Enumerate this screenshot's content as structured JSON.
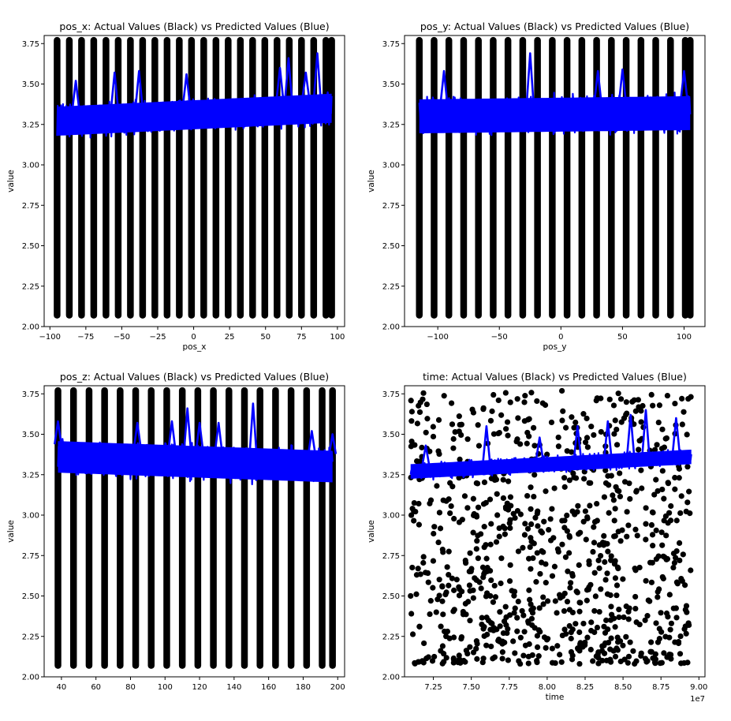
{
  "colors": {
    "actual": "#000000",
    "predicted": "#0000ff",
    "axes": "#000000",
    "background": "#ffffff"
  },
  "chart_data": [
    {
      "type": "scatter",
      "title": "pos_x: Actual Values (Black) vs Predicted Values (Blue)",
      "xlabel": "pos_x",
      "ylabel": "value",
      "xlim": [
        -104,
        105
      ],
      "ylim": [
        2.0,
        3.8
      ],
      "xticks": [
        -100,
        -75,
        -50,
        -25,
        0,
        25,
        50,
        75,
        100
      ],
      "xtick_labels": [
        "−100",
        "−75",
        "−50",
        "−25",
        "0",
        "25",
        "50",
        "75",
        "100"
      ],
      "yticks": [
        2.0,
        2.25,
        2.5,
        2.75,
        3.0,
        3.25,
        3.5,
        3.75
      ],
      "ytick_labels": [
        "2.00",
        "2.25",
        "2.50",
        "2.75",
        "3.00",
        "3.25",
        "3.50",
        "3.75"
      ],
      "exponent_label": "",
      "grid": false,
      "actual": {
        "style": "vertical-stripes",
        "x_values": [
          -95,
          -86.5,
          -78,
          -69.5,
          -61,
          -52.5,
          -44,
          -35.5,
          -27,
          -18.5,
          -10,
          -1.5,
          7,
          15.5,
          24,
          32.5,
          41,
          49.5,
          58,
          66.5,
          75,
          83.5,
          92,
          96
        ],
        "y_range": [
          2.07,
          3.77
        ]
      },
      "predicted": {
        "trend_start": [
          -95,
          3.27
        ],
        "trend_end": [
          96,
          3.35
        ],
        "half_width": 0.12,
        "spikes": [
          [
            -82,
            3.52
          ],
          [
            -55,
            3.57
          ],
          [
            -38,
            3.58
          ],
          [
            -5,
            3.56
          ],
          [
            60,
            3.6
          ],
          [
            66,
            3.66
          ],
          [
            78,
            3.57
          ],
          [
            86,
            3.69
          ]
        ]
      }
    },
    {
      "type": "scatter",
      "title": "pos_y: Actual Values (Black) vs Predicted Values (Blue)",
      "xlabel": "pos_y",
      "ylabel": "value",
      "xlim": [
        -127,
        117
      ],
      "ylim": [
        2.0,
        3.8
      ],
      "xticks": [
        -100,
        -50,
        0,
        50,
        100
      ],
      "xtick_labels": [
        "−100",
        "−50",
        "0",
        "50",
        "100"
      ],
      "yticks": [
        2.0,
        2.25,
        2.5,
        2.75,
        3.0,
        3.25,
        3.5,
        3.75
      ],
      "ytick_labels": [
        "2.00",
        "2.25",
        "2.50",
        "2.75",
        "3.00",
        "3.25",
        "3.50",
        "3.75"
      ],
      "exponent_label": "",
      "grid": false,
      "actual": {
        "style": "vertical-stripes",
        "x_values": [
          -115,
          -103,
          -91,
          -79,
          -67,
          -55,
          -43,
          -31,
          -19,
          -7,
          5,
          17,
          29,
          41,
          53,
          65,
          77,
          89,
          101,
          105
        ],
        "y_range": [
          2.07,
          3.77
        ]
      },
      "predicted": {
        "trend_start": [
          -115,
          3.3
        ],
        "trend_end": [
          105,
          3.32
        ],
        "half_width": 0.14,
        "spikes": [
          [
            -95,
            3.58
          ],
          [
            -25,
            3.69
          ],
          [
            30,
            3.58
          ],
          [
            50,
            3.59
          ],
          [
            100,
            3.58
          ]
        ]
      }
    },
    {
      "type": "scatter",
      "title": "pos_z: Actual Values (Black) vs Predicted Values (Blue)",
      "xlabel": "",
      "ylabel": "value",
      "xlim": [
        30,
        204
      ],
      "ylim": [
        2.0,
        3.8
      ],
      "xticks": [
        40,
        60,
        80,
        100,
        120,
        140,
        160,
        180,
        200
      ],
      "xtick_labels": [
        "40",
        "60",
        "80",
        "100",
        "120",
        "140",
        "160",
        "180",
        "200"
      ],
      "yticks": [
        2.0,
        2.25,
        2.5,
        2.75,
        3.0,
        3.25,
        3.5,
        3.75
      ],
      "ytick_labels": [
        "2.00",
        "2.25",
        "2.50",
        "2.75",
        "3.00",
        "3.25",
        "3.50",
        "3.75"
      ],
      "exponent_label": "",
      "grid": false,
      "actual": {
        "style": "vertical-stripes",
        "x_values": [
          38,
          47,
          56,
          65,
          74,
          83,
          92,
          101,
          110,
          119,
          128,
          137,
          146,
          155,
          164,
          173,
          182,
          191,
          197
        ],
        "y_range": [
          2.07,
          3.77
        ]
      },
      "predicted": {
        "trend_start": [
          38,
          3.36
        ],
        "trend_end": [
          197,
          3.3
        ],
        "half_width": 0.13,
        "spikes": [
          [
            38,
            3.58
          ],
          [
            84,
            3.57
          ],
          [
            104,
            3.58
          ],
          [
            113,
            3.66
          ],
          [
            120,
            3.57
          ],
          [
            131,
            3.57
          ],
          [
            151,
            3.69
          ],
          [
            185,
            3.52
          ],
          [
            197,
            3.5
          ]
        ]
      }
    },
    {
      "type": "scatter",
      "title": "time: Actual Values (Black) vs Predicted Values (Blue)",
      "xlabel": "time",
      "ylabel": "value",
      "xlim": [
        70600000,
        90400000
      ],
      "ylim": [
        2.0,
        3.8
      ],
      "xticks": [
        72500000,
        75000000,
        77500000,
        80000000,
        82500000,
        85000000,
        87500000,
        90000000
      ],
      "xtick_labels": [
        "7.25",
        "7.50",
        "7.75",
        "8.00",
        "8.25",
        "8.50",
        "8.75",
        "9.00"
      ],
      "yticks": [
        2.0,
        2.25,
        2.5,
        2.75,
        3.0,
        3.25,
        3.5,
        3.75
      ],
      "ytick_labels": [
        "2.00",
        "2.25",
        "2.50",
        "2.75",
        "3.00",
        "3.25",
        "3.50",
        "3.75"
      ],
      "exponent_label": "1e7",
      "grid": false,
      "actual": {
        "style": "random-scatter",
        "count": 900,
        "x_range": [
          71000000,
          89500000
        ],
        "y_range": [
          2.08,
          3.77
        ]
      },
      "predicted": {
        "trend_start": [
          71000000,
          3.27
        ],
        "trend_end": [
          89500000,
          3.36
        ],
        "half_width": 0.06,
        "spikes": [
          [
            72000000,
            3.43
          ],
          [
            76000000,
            3.55
          ],
          [
            79500000,
            3.48
          ],
          [
            82000000,
            3.55
          ],
          [
            84000000,
            3.58
          ],
          [
            85500000,
            3.62
          ],
          [
            86500000,
            3.65
          ],
          [
            88500000,
            3.6
          ]
        ]
      }
    }
  ]
}
